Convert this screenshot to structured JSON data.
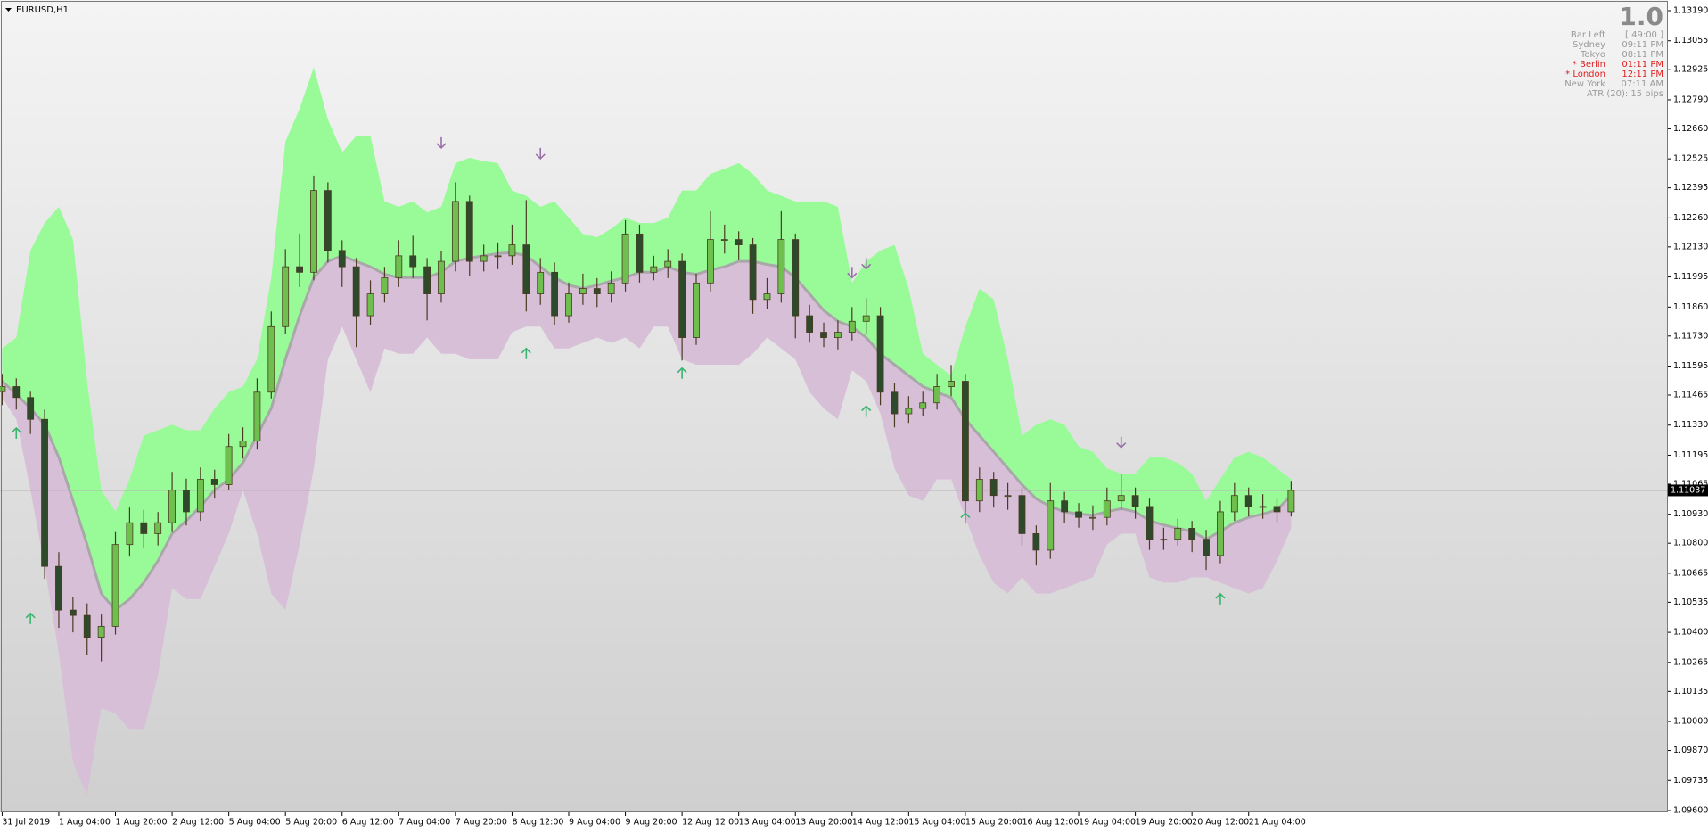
{
  "chart_data": {
    "type": "candlestick",
    "symbol": "EURUSD,H1",
    "ylim": [
      1.096,
      1.1319
    ],
    "yticks": [
      {
        "value": 1.1319,
        "label": "1.13190"
      },
      1.13055,
      1.12925,
      {
        "value": 1.1279,
        "label": "1.12790"
      },
      {
        "value": 1.1266,
        "label": "1.12660"
      },
      1.12525,
      1.12395,
      {
        "value": 1.1226,
        "label": "1.12260"
      },
      {
        "value": 1.1213,
        "label": "1.12130"
      },
      1.11995,
      {
        "value": 1.1186,
        "label": "1.11860"
      },
      {
        "value": 1.1173,
        "label": "1.11730"
      },
      1.11595,
      1.11465,
      {
        "value": 1.1133,
        "label": "1.11330"
      },
      1.11195,
      1.11065,
      {
        "value": 1.1093,
        "label": "1.10930"
      },
      {
        "value": 1.108,
        "label": "1.10800"
      },
      1.10665,
      1.10535,
      {
        "value": 1.104,
        "label": "1.10400"
      },
      1.10265,
      1.10135,
      {
        "value": 1.1,
        "label": "1.10000"
      },
      {
        "value": 1.0987,
        "label": "1.09870"
      },
      1.09735,
      {
        "value": 1.096,
        "label": "1.09600"
      }
    ],
    "xticks": [
      {
        "value": 0,
        "label": "31 Jul 2019"
      },
      {
        "value": 4,
        "label": "1 Aug 04:00"
      },
      {
        "value": 8,
        "label": "1 Aug 20:00"
      },
      {
        "value": 12,
        "label": "2 Aug 12:00"
      },
      {
        "value": 16,
        "label": "5 Aug 04:00"
      },
      {
        "value": 20,
        "label": "5 Aug 20:00"
      },
      {
        "value": 24,
        "label": "6 Aug 12:00"
      },
      {
        "value": 28,
        "label": "7 Aug 04:00"
      },
      {
        "value": 32,
        "label": "7 Aug 20:00"
      },
      {
        "value": 36,
        "label": "8 Aug 12:00"
      },
      {
        "value": 40,
        "label": "9 Aug 04:00"
      },
      {
        "value": 44,
        "label": "9 Aug 20:00"
      },
      {
        "value": 48,
        "label": "12 Aug 12:00"
      },
      {
        "value": 52,
        "label": "13 Aug 04:00"
      },
      {
        "value": 56,
        "label": "13 Aug 20:00"
      },
      {
        "value": 60,
        "label": "14 Aug 12:00"
      },
      {
        "value": 64,
        "label": "15 Aug 04:00"
      },
      {
        "value": 68,
        "label": "15 Aug 20:00"
      },
      {
        "value": 72,
        "label": "16 Aug 12:00"
      },
      {
        "value": 76,
        "label": "19 Aug 04:00"
      },
      {
        "value": 80,
        "label": "19 Aug 20:00"
      },
      {
        "value": 84,
        "label": "20 Aug 12:00"
      },
      {
        "value": 88,
        "label": "21 Aug 04:00"
      }
    ],
    "bid": 1.11037,
    "colors": {
      "bull": "#6fbf4f",
      "bear": "#2f4a2a",
      "wick": "#4a3a22",
      "upper_band": "#98fb98",
      "lower_band": "#d8bfd8",
      "mid": "#a8a8a8",
      "buy": "#3cb371",
      "sell": "#9a70a8"
    },
    "ohlc": [
      [
        1.1148,
        1.1156,
        1.1142,
        1.11503
      ],
      [
        1.11503,
        1.1154,
        1.114,
        1.11454
      ],
      [
        1.11454,
        1.1148,
        1.1129,
        1.11356
      ],
      [
        1.11356,
        1.114,
        1.1064,
        1.10696
      ],
      [
        1.10696,
        1.1076,
        1.1042,
        1.105
      ],
      [
        1.105,
        1.1056,
        1.104,
        1.10476
      ],
      [
        1.10476,
        1.1053,
        1.103,
        1.10378
      ],
      [
        1.10378,
        1.1048,
        1.1027,
        1.10427
      ],
      [
        1.10427,
        1.1085,
        1.1039,
        1.10794
      ],
      [
        1.10794,
        1.1096,
        1.1074,
        1.10892
      ],
      [
        1.10892,
        1.1095,
        1.1078,
        1.10843
      ],
      [
        1.10843,
        1.1094,
        1.1079,
        1.10892
      ],
      [
        1.10892,
        1.1112,
        1.1085,
        1.11038
      ],
      [
        1.11038,
        1.1109,
        1.1088,
        1.10941
      ],
      [
        1.10941,
        1.1114,
        1.109,
        1.11087
      ],
      [
        1.11087,
        1.1113,
        1.11,
        1.11063
      ],
      [
        1.11063,
        1.1129,
        1.1104,
        1.11234
      ],
      [
        1.11234,
        1.1132,
        1.1118,
        1.11259
      ],
      [
        1.11259,
        1.1154,
        1.1122,
        1.11478
      ],
      [
        1.11478,
        1.1184,
        1.1145,
        1.11772
      ],
      [
        1.11772,
        1.1212,
        1.1174,
        1.12041
      ],
      [
        1.12041,
        1.1219,
        1.1195,
        1.12016
      ],
      [
        1.12016,
        1.1245,
        1.1198,
        1.12383
      ],
      [
        1.12383,
        1.1242,
        1.1206,
        1.12114
      ],
      [
        1.12114,
        1.1216,
        1.1195,
        1.12041
      ],
      [
        1.12041,
        1.1208,
        1.1168,
        1.11821
      ],
      [
        1.11821,
        1.1198,
        1.1178,
        1.11919
      ],
      [
        1.11919,
        1.1204,
        1.1188,
        1.11992
      ],
      [
        1.11992,
        1.1216,
        1.1195,
        1.1209
      ],
      [
        1.1209,
        1.1218,
        1.1199,
        1.12041
      ],
      [
        1.12041,
        1.1208,
        1.118,
        1.11919
      ],
      [
        1.11919,
        1.1211,
        1.1188,
        1.12065
      ],
      [
        1.12065,
        1.1242,
        1.1202,
        1.12334
      ],
      [
        1.12334,
        1.1236,
        1.12,
        1.12065
      ],
      [
        1.12065,
        1.1214,
        1.1202,
        1.1209
      ],
      [
        1.1209,
        1.1215,
        1.1203,
        1.1209
      ],
      [
        1.1209,
        1.1223,
        1.1205,
        1.12139
      ],
      [
        1.12139,
        1.1234,
        1.1184,
        1.11919
      ],
      [
        1.11919,
        1.1208,
        1.1187,
        1.12016
      ],
      [
        1.12016,
        1.1206,
        1.1178,
        1.11821
      ],
      [
        1.11821,
        1.1197,
        1.1179,
        1.11919
      ],
      [
        1.11919,
        1.1201,
        1.1187,
        1.11943
      ],
      [
        1.11943,
        1.1199,
        1.1186,
        1.11919
      ],
      [
        1.11919,
        1.1202,
        1.1188,
        1.11968
      ],
      [
        1.11968,
        1.1225,
        1.1193,
        1.12188
      ],
      [
        1.12188,
        1.1223,
        1.1197,
        1.12016
      ],
      [
        1.12016,
        1.1209,
        1.1198,
        1.12041
      ],
      [
        1.12041,
        1.1212,
        1.1199,
        1.12065
      ],
      [
        1.12065,
        1.121,
        1.1162,
        1.11723
      ],
      [
        1.11723,
        1.1201,
        1.1169,
        1.11968
      ],
      [
        1.11968,
        1.1229,
        1.1193,
        1.12163
      ],
      [
        1.12163,
        1.1223,
        1.121,
        1.12163
      ],
      [
        1.12163,
        1.122,
        1.1207,
        1.12139
      ],
      [
        1.12139,
        1.1217,
        1.1183,
        1.11894
      ],
      [
        1.11894,
        1.1199,
        1.1185,
        1.11919
      ],
      [
        1.11919,
        1.1229,
        1.1188,
        1.12163
      ],
      [
        1.12163,
        1.1219,
        1.1172,
        1.11821
      ],
      [
        1.11821,
        1.1187,
        1.117,
        1.11747
      ],
      [
        1.11747,
        1.1179,
        1.1168,
        1.11723
      ],
      [
        1.11723,
        1.118,
        1.1167,
        1.11747
      ],
      [
        1.11747,
        1.1186,
        1.1171,
        1.11796
      ],
      [
        1.11796,
        1.119,
        1.1174,
        1.11821
      ],
      [
        1.11821,
        1.1186,
        1.1142,
        1.11478
      ],
      [
        1.11478,
        1.1152,
        1.1132,
        1.11381
      ],
      [
        1.11381,
        1.1146,
        1.1134,
        1.11405
      ],
      [
        1.11405,
        1.1148,
        1.1137,
        1.1143
      ],
      [
        1.1143,
        1.1156,
        1.114,
        1.11503
      ],
      [
        1.11503,
        1.116,
        1.1146,
        1.11527
      ],
      [
        1.11527,
        1.1156,
        1.1092,
        1.1099
      ],
      [
        1.1099,
        1.1114,
        1.1094,
        1.11087
      ],
      [
        1.11087,
        1.1112,
        1.1096,
        1.11014
      ],
      [
        1.11014,
        1.1107,
        1.1095,
        1.11014
      ],
      [
        1.11014,
        1.1105,
        1.1079,
        1.10843
      ],
      [
        1.10843,
        1.1088,
        1.107,
        1.10769
      ],
      [
        1.10769,
        1.1107,
        1.1073,
        1.1099
      ],
      [
        1.1099,
        1.1103,
        1.1089,
        1.10941
      ],
      [
        1.10941,
        1.1098,
        1.1087,
        1.10916
      ],
      [
        1.10916,
        1.1097,
        1.1086,
        1.10916
      ],
      [
        1.10916,
        1.1105,
        1.1088,
        1.1099
      ],
      [
        1.1099,
        1.1111,
        1.1095,
        1.11014
      ],
      [
        1.11014,
        1.1105,
        1.1091,
        1.10965
      ],
      [
        1.10965,
        1.11,
        1.1077,
        1.10818
      ],
      [
        1.10818,
        1.1087,
        1.1077,
        1.10818
      ],
      [
        1.10818,
        1.1091,
        1.1079,
        1.10867
      ],
      [
        1.10867,
        1.109,
        1.1076,
        1.10818
      ],
      [
        1.10818,
        1.1086,
        1.1068,
        1.10745
      ],
      [
        1.10745,
        1.1099,
        1.1071,
        1.10941
      ],
      [
        1.10941,
        1.1107,
        1.109,
        1.11014
      ],
      [
        1.11014,
        1.1105,
        1.1092,
        1.10965
      ],
      [
        1.10965,
        1.1102,
        1.1091,
        1.10965
      ],
      [
        1.10965,
        1.11,
        1.1089,
        1.10941
      ],
      [
        1.10941,
        1.1108,
        1.1092,
        1.11037
      ]
    ],
    "bands": {
      "upper": [
        1.11674,
        1.11723,
        1.12114,
        1.12237,
        1.1231,
        1.12163,
        1.11527,
        1.11038,
        1.10941,
        1.11087,
        1.11283,
        1.11307,
        1.11332,
        1.11307,
        1.11307,
        1.11405,
        1.11478,
        1.11503,
        1.11625,
        1.11992,
        1.12603,
        1.1275,
        1.12936,
        1.12701,
        1.12554,
        1.12628,
        1.12628,
        1.12334,
        1.1231,
        1.12334,
        1.12285,
        1.1231,
        1.12506,
        1.1253,
        1.12515,
        1.12506,
        1.12383,
        1.12359,
        1.1231,
        1.12334,
        1.12261,
        1.12188,
        1.12173,
        1.12212,
        1.12261,
        1.12237,
        1.12237,
        1.12261,
        1.12383,
        1.12383,
        1.12457,
        1.12481,
        1.12506,
        1.12457,
        1.12383,
        1.12359,
        1.12334,
        1.12334,
        1.12334,
        1.1231,
        1.11968,
        1.12065,
        1.12114,
        1.12139,
        1.11943,
        1.1165,
        1.11601,
        1.11552,
        1.11772,
        1.11943,
        1.11894,
        1.11625,
        1.11283,
        1.11332,
        1.11356,
        1.11332,
        1.11234,
        1.1121,
        1.11136,
        1.11112,
        1.11112,
        1.11185,
        1.11185,
        1.11161,
        1.11112,
        1.1099,
        1.11087,
        1.11185,
        1.1121,
        1.11185,
        1.11136,
        1.11087
      ],
      "mid": [
        1.11527,
        1.11469,
        1.11405,
        1.11332,
        1.11185,
        1.1099,
        1.10794,
        1.10574,
        1.105,
        1.10549,
        1.10623,
        1.10721,
        1.10843,
        1.10901,
        1.10965,
        1.11038,
        1.11087,
        1.11161,
        1.11283,
        1.11405,
        1.11625,
        1.11821,
        1.11992,
        1.12065,
        1.1209,
        1.12065,
        1.12041,
        1.12007,
        1.11992,
        1.11992,
        1.11992,
        1.12016,
        1.12065,
        1.1208,
        1.1209,
        1.121,
        1.12104,
        1.1209,
        1.12041,
        1.11992,
        1.11958,
        1.11943,
        1.11958,
        1.11977,
        1.11992,
        1.12016,
        1.12016,
        1.12041,
        1.12016,
        1.12007,
        1.12026,
        1.12041,
        1.12065,
        1.12065,
        1.12051,
        1.12041,
        1.11992,
        1.11919,
        1.11845,
        1.11796,
        1.11772,
        1.11723,
        1.1165,
        1.11601,
        1.11552,
        1.11503,
        1.11478,
        1.11454,
        1.11356,
        1.11283,
        1.1121,
        1.11136,
        1.11063,
        1.10999,
        1.10965,
        1.10941,
        1.10931,
        1.10926,
        1.10941,
        1.10955,
        1.10941,
        1.10901,
        1.10882,
        1.10867,
        1.10853,
        1.10818,
        1.10853,
        1.10892,
        1.10916,
        1.10931,
        1.1095,
        1.11014
      ],
      "lower": [
        1.11454,
        1.11356,
        1.11038,
        1.10696,
        1.10305,
        1.09816,
        1.09669,
        1.1006,
        1.10036,
        1.09963,
        1.09963,
        1.10207,
        1.10598,
        1.10549,
        1.10549,
        1.10696,
        1.10843,
        1.11038,
        1.10843,
        1.10574,
        1.105,
        1.10794,
        1.11136,
        1.11625,
        1.11772,
        1.11625,
        1.11478,
        1.11674,
        1.1165,
        1.1165,
        1.11723,
        1.1165,
        1.1165,
        1.11625,
        1.11625,
        1.11625,
        1.11747,
        1.11772,
        1.11772,
        1.11674,
        1.11674,
        1.11699,
        1.11723,
        1.11699,
        1.11723,
        1.11674,
        1.11772,
        1.11772,
        1.11625,
        1.11601,
        1.11601,
        1.11601,
        1.11601,
        1.1165,
        1.11723,
        1.11674,
        1.11625,
        1.11478,
        1.11405,
        1.11356,
        1.11576,
        1.11527,
        1.11381,
        1.11136,
        1.11014,
        1.1099,
        1.11087,
        1.11087,
        1.10916,
        1.10745,
        1.10623,
        1.10574,
        1.10647,
        1.10574,
        1.10574,
        1.10598,
        1.10623,
        1.10647,
        1.10794,
        1.10843,
        1.10843,
        1.10647,
        1.10623,
        1.10623,
        1.10647,
        1.10647,
        1.10623,
        1.10598,
        1.10574,
        1.10598,
        1.10721,
        1.10867
      ]
    },
    "buy_arrows": {
      "x": [
        1,
        2,
        37,
        48,
        61,
        68,
        86
      ],
      "values": [
        1.11293,
        1.10461,
        1.1165,
        1.11562,
        1.11391,
        1.10911,
        1.10549
      ]
    },
    "sell_arrows": {
      "x": [
        31,
        38,
        60,
        61,
        79
      ],
      "values": [
        1.12598,
        1.1255,
        1.12016,
        1.12056,
        1.11254
      ]
    },
    "info": {
      "counter": "1.0",
      "rows": [
        {
          "label": "Bar Left",
          "value": "[ 49:00 ]",
          "color": "#9a9a9a"
        },
        {
          "label": "Sydney",
          "value": "09:11 PM",
          "color": "#9a9a9a"
        },
        {
          "label": "Tokyo",
          "value": "08:11 PM",
          "color": "#9a9a9a"
        },
        {
          "label": "* Berlin",
          "value": "01:11 PM",
          "color": "#e02020"
        },
        {
          "label": "* London",
          "value": "12:11 PM",
          "color": "#e02020"
        },
        {
          "label": "New York",
          "value": "07:11 AM",
          "color": "#9a9a9a"
        }
      ],
      "atr": "ATR (20): 15 pips"
    }
  }
}
